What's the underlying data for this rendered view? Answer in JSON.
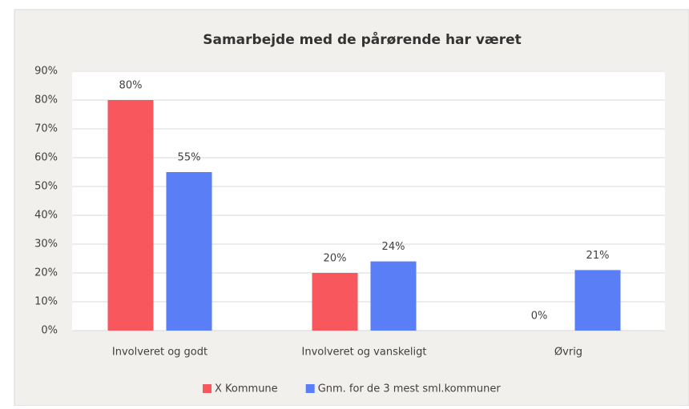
{
  "chart_data": {
    "type": "bar",
    "title": "Samarbejde med de pårørende har været",
    "categories": [
      "Involveret og godt",
      "Involveret og vanskeligt",
      "Øvrig"
    ],
    "series": [
      {
        "name": "X Kommune",
        "color": "#f9575e",
        "values": [
          80,
          20,
          0
        ],
        "value_labels": [
          "80%",
          "20%",
          "0%"
        ]
      },
      {
        "name": "Gnm. for de 3 mest sml.kommuner",
        "color": "#5a7ef5",
        "values": [
          55,
          24,
          21
        ],
        "value_labels": [
          "55%",
          "24%",
          "21%"
        ]
      }
    ],
    "ylim": [
      0,
      90
    ],
    "yticks": [
      {
        "value": 0,
        "label": "0%"
      },
      {
        "value": 10,
        "label": "10%"
      },
      {
        "value": 20,
        "label": "20%"
      },
      {
        "value": 30,
        "label": "30%"
      },
      {
        "value": 40,
        "label": "40%"
      },
      {
        "value": 50,
        "label": "50%"
      },
      {
        "value": 60,
        "label": "60%"
      },
      {
        "value": 70,
        "label": "70%"
      },
      {
        "value": 80,
        "label": "80%"
      },
      {
        "value": 90,
        "label": "90%"
      }
    ],
    "grid": true,
    "legend": "bottom"
  }
}
